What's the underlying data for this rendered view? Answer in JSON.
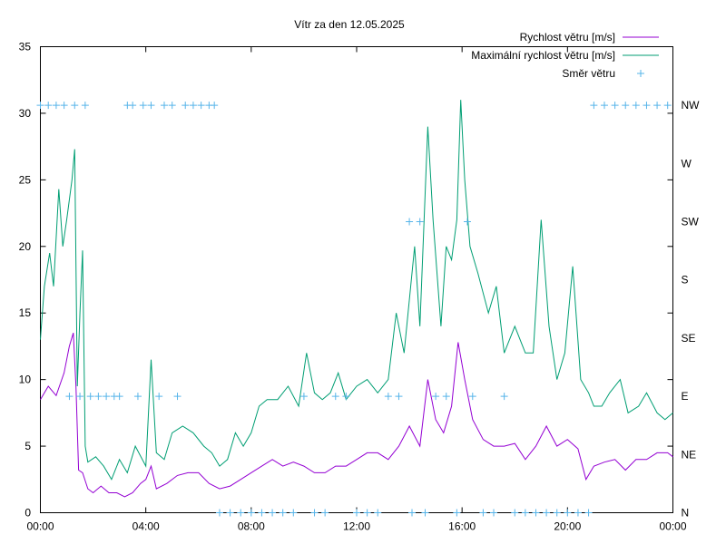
{
  "chart_data": {
    "type": "line",
    "title": "Vítr za den 12.05.2025",
    "y_ticks": [
      0,
      5,
      10,
      15,
      20,
      25,
      30,
      35
    ],
    "ylim": [
      0,
      35
    ],
    "x_ticks": [
      "00:00",
      "04:00",
      "08:00",
      "12:00",
      "16:00",
      "20:00",
      "00:00"
    ],
    "xlim_hours": [
      0,
      24
    ],
    "y2_ticks": [
      "N",
      "NE",
      "E",
      "SE",
      "S",
      "SW",
      "W",
      "NW"
    ],
    "grid": false,
    "legend_position": "top-right",
    "series": [
      {
        "name": "Rychlost větru [m/s]",
        "color": "#9400d3",
        "points": [
          [
            0.0,
            8.5
          ],
          [
            0.3,
            9.5
          ],
          [
            0.6,
            8.8
          ],
          [
            0.9,
            10.5
          ],
          [
            1.1,
            12.5
          ],
          [
            1.25,
            13.5
          ],
          [
            1.35,
            9.5
          ],
          [
            1.45,
            3.2
          ],
          [
            1.6,
            3.0
          ],
          [
            1.8,
            1.8
          ],
          [
            2.0,
            1.5
          ],
          [
            2.3,
            2.0
          ],
          [
            2.6,
            1.5
          ],
          [
            2.9,
            1.5
          ],
          [
            3.2,
            1.2
          ],
          [
            3.5,
            1.5
          ],
          [
            3.8,
            2.2
          ],
          [
            4.0,
            2.5
          ],
          [
            4.2,
            3.5
          ],
          [
            4.4,
            1.8
          ],
          [
            4.8,
            2.2
          ],
          [
            5.2,
            2.8
          ],
          [
            5.6,
            3.0
          ],
          [
            6.0,
            3.0
          ],
          [
            6.4,
            2.2
          ],
          [
            6.8,
            1.8
          ],
          [
            7.2,
            2.0
          ],
          [
            7.6,
            2.5
          ],
          [
            8.0,
            3.0
          ],
          [
            8.4,
            3.5
          ],
          [
            8.8,
            4.0
          ],
          [
            9.2,
            3.5
          ],
          [
            9.6,
            3.8
          ],
          [
            10.0,
            3.5
          ],
          [
            10.4,
            3.0
          ],
          [
            10.8,
            3.0
          ],
          [
            11.2,
            3.5
          ],
          [
            11.6,
            3.5
          ],
          [
            12.0,
            4.0
          ],
          [
            12.4,
            4.5
          ],
          [
            12.8,
            4.5
          ],
          [
            13.2,
            4.0
          ],
          [
            13.6,
            5.0
          ],
          [
            14.0,
            6.5
          ],
          [
            14.4,
            5.0
          ],
          [
            14.7,
            10.0
          ],
          [
            15.0,
            7.0
          ],
          [
            15.3,
            6.0
          ],
          [
            15.6,
            8.0
          ],
          [
            15.85,
            12.8
          ],
          [
            16.1,
            10.0
          ],
          [
            16.4,
            7.0
          ],
          [
            16.8,
            5.5
          ],
          [
            17.2,
            5.0
          ],
          [
            17.6,
            5.0
          ],
          [
            18.0,
            5.2
          ],
          [
            18.4,
            4.0
          ],
          [
            18.8,
            5.0
          ],
          [
            19.2,
            6.5
          ],
          [
            19.6,
            5.0
          ],
          [
            20.0,
            5.5
          ],
          [
            20.4,
            4.8
          ],
          [
            20.7,
            2.5
          ],
          [
            21.0,
            3.5
          ],
          [
            21.4,
            3.8
          ],
          [
            21.8,
            4.0
          ],
          [
            22.2,
            3.2
          ],
          [
            22.6,
            4.0
          ],
          [
            23.0,
            4.0
          ],
          [
            23.4,
            4.5
          ],
          [
            23.8,
            4.5
          ],
          [
            24.0,
            4.2
          ]
        ]
      },
      {
        "name": "Maximální rychlost větru [m/s]",
        "color": "#009e73",
        "points": [
          [
            0.0,
            13.0
          ],
          [
            0.15,
            17.0
          ],
          [
            0.35,
            19.5
          ],
          [
            0.5,
            17.0
          ],
          [
            0.7,
            24.3
          ],
          [
            0.85,
            20.0
          ],
          [
            1.0,
            22.0
          ],
          [
            1.2,
            25.0
          ],
          [
            1.3,
            27.3
          ],
          [
            1.4,
            9.5
          ],
          [
            1.5,
            15.0
          ],
          [
            1.6,
            19.7
          ],
          [
            1.7,
            5.0
          ],
          [
            1.8,
            3.8
          ],
          [
            2.1,
            4.2
          ],
          [
            2.4,
            3.5
          ],
          [
            2.7,
            2.5
          ],
          [
            3.0,
            4.0
          ],
          [
            3.3,
            3.0
          ],
          [
            3.6,
            5.0
          ],
          [
            4.0,
            3.5
          ],
          [
            4.2,
            11.5
          ],
          [
            4.4,
            4.5
          ],
          [
            4.7,
            4.0
          ],
          [
            5.0,
            6.0
          ],
          [
            5.4,
            6.5
          ],
          [
            5.8,
            6.0
          ],
          [
            6.2,
            5.0
          ],
          [
            6.5,
            4.5
          ],
          [
            6.8,
            3.5
          ],
          [
            7.1,
            4.0
          ],
          [
            7.4,
            6.0
          ],
          [
            7.7,
            5.0
          ],
          [
            8.0,
            6.0
          ],
          [
            8.3,
            8.0
          ],
          [
            8.6,
            8.5
          ],
          [
            9.0,
            8.5
          ],
          [
            9.4,
            9.5
          ],
          [
            9.8,
            8.0
          ],
          [
            10.1,
            12.0
          ],
          [
            10.4,
            9.0
          ],
          [
            10.7,
            8.5
          ],
          [
            11.0,
            9.0
          ],
          [
            11.3,
            10.5
          ],
          [
            11.6,
            8.5
          ],
          [
            12.0,
            9.5
          ],
          [
            12.4,
            10.0
          ],
          [
            12.8,
            9.0
          ],
          [
            13.2,
            10.0
          ],
          [
            13.5,
            15.0
          ],
          [
            13.8,
            12.0
          ],
          [
            14.0,
            16.0
          ],
          [
            14.2,
            20.0
          ],
          [
            14.4,
            14.0
          ],
          [
            14.7,
            29.0
          ],
          [
            14.9,
            22.0
          ],
          [
            15.2,
            14.0
          ],
          [
            15.4,
            20.0
          ],
          [
            15.6,
            19.0
          ],
          [
            15.8,
            22.0
          ],
          [
            15.95,
            31.0
          ],
          [
            16.1,
            25.0
          ],
          [
            16.3,
            20.0
          ],
          [
            16.6,
            18.0
          ],
          [
            17.0,
            15.0
          ],
          [
            17.3,
            17.0
          ],
          [
            17.6,
            12.0
          ],
          [
            18.0,
            14.0
          ],
          [
            18.4,
            12.0
          ],
          [
            18.7,
            12.0
          ],
          [
            19.0,
            22.0
          ],
          [
            19.3,
            14.0
          ],
          [
            19.6,
            10.0
          ],
          [
            19.9,
            12.0
          ],
          [
            20.2,
            18.5
          ],
          [
            20.5,
            10.0
          ],
          [
            20.8,
            9.0
          ],
          [
            21.0,
            8.0
          ],
          [
            21.3,
            8.0
          ],
          [
            21.6,
            9.0
          ],
          [
            22.0,
            10.0
          ],
          [
            22.3,
            7.5
          ],
          [
            22.7,
            8.0
          ],
          [
            23.0,
            9.0
          ],
          [
            23.4,
            7.5
          ],
          [
            23.7,
            7.0
          ],
          [
            24.0,
            7.5
          ]
        ]
      },
      {
        "name": "Směr větru",
        "color": "#56b4e9",
        "marker": "plus",
        "points": [
          [
            0.0,
            7
          ],
          [
            0.3,
            7
          ],
          [
            0.6,
            7
          ],
          [
            0.9,
            7
          ],
          [
            1.1,
            2
          ],
          [
            1.3,
            7
          ],
          [
            1.5,
            2
          ],
          [
            1.7,
            7
          ],
          [
            1.9,
            2
          ],
          [
            2.2,
            2
          ],
          [
            2.5,
            2
          ],
          [
            2.8,
            2
          ],
          [
            3.0,
            2
          ],
          [
            3.3,
            7
          ],
          [
            3.5,
            7
          ],
          [
            3.7,
            2
          ],
          [
            3.9,
            7
          ],
          [
            4.2,
            7
          ],
          [
            4.5,
            2
          ],
          [
            4.7,
            7
          ],
          [
            5.0,
            7
          ],
          [
            5.2,
            2
          ],
          [
            5.5,
            7
          ],
          [
            5.8,
            7
          ],
          [
            6.1,
            7
          ],
          [
            6.4,
            7
          ],
          [
            6.6,
            7
          ],
          [
            6.8,
            0
          ],
          [
            7.2,
            0
          ],
          [
            7.6,
            0
          ],
          [
            8.0,
            0
          ],
          [
            8.4,
            0
          ],
          [
            8.8,
            0
          ],
          [
            9.2,
            0
          ],
          [
            9.6,
            0
          ],
          [
            10.0,
            2
          ],
          [
            10.4,
            0
          ],
          [
            10.8,
            0
          ],
          [
            11.2,
            2
          ],
          [
            11.6,
            2
          ],
          [
            12.0,
            0
          ],
          [
            12.4,
            0
          ],
          [
            12.8,
            0
          ],
          [
            13.2,
            2
          ],
          [
            13.6,
            2
          ],
          [
            14.0,
            5
          ],
          [
            14.1,
            0
          ],
          [
            14.4,
            5
          ],
          [
            14.6,
            0
          ],
          [
            15.0,
            2
          ],
          [
            15.4,
            2
          ],
          [
            15.8,
            0
          ],
          [
            16.2,
            5
          ],
          [
            16.4,
            2
          ],
          [
            16.8,
            0
          ],
          [
            17.2,
            0
          ],
          [
            17.6,
            2
          ],
          [
            18.0,
            0
          ],
          [
            18.4,
            0
          ],
          [
            18.8,
            0
          ],
          [
            19.2,
            0
          ],
          [
            19.6,
            0
          ],
          [
            20.0,
            0
          ],
          [
            20.4,
            0
          ],
          [
            20.8,
            0
          ],
          [
            21.0,
            7
          ],
          [
            21.4,
            7
          ],
          [
            21.8,
            7
          ],
          [
            22.2,
            7
          ],
          [
            22.6,
            7
          ],
          [
            23.0,
            7
          ],
          [
            23.4,
            7
          ],
          [
            23.8,
            7
          ]
        ]
      }
    ]
  }
}
